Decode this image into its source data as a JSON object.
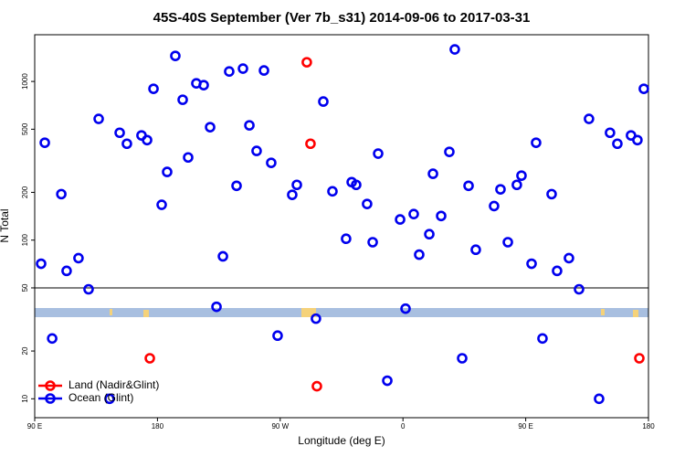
{
  "chart_data": {
    "type": "scatter",
    "title": "45S-40S September (Ver 7b_s31)   2014-09-06 to 2017-03-31",
    "x_label": "Longitude (deg E)",
    "y_label": "N Total",
    "log_y": true,
    "xlim": [
      90,
      540
    ],
    "xticks": [
      {
        "value": 90,
        "label": "90 E"
      },
      180,
      {
        "value": 270,
        "label": "90 W"
      },
      {
        "value": 360,
        "label": "0"
      },
      {
        "value": 450,
        "label": "90 E"
      },
      {
        "value": 540,
        "label": "180"
      }
    ],
    "ylim": [
      7.6,
      1970
    ],
    "yticks": [
      10,
      20,
      50,
      100,
      200,
      500,
      1000
    ],
    "reference_line": 50,
    "legend": "lower left",
    "series": [
      {
        "name": "Land (Nadir&Glint)",
        "color": "#ff0000",
        "x": [
          174.4,
          289.5,
          292.2,
          296.9,
          533.3
        ],
        "values": [
          18,
          1321,
          405,
          12,
          18
        ]
      },
      {
        "name": "Ocean (Glint)",
        "color": "#0000ee",
        "x": [
          94.7,
          97.4,
          102.8,
          109.5,
          113.4,
          122.1,
          129.5,
          136.9,
          144.9,
          152.3,
          157.6,
          168.3,
          172.4,
          177.1,
          183.1,
          187.1,
          193.1,
          198.5,
          202.5,
          208.5,
          213.9,
          218.6,
          223.3,
          228.0,
          232.6,
          238.0,
          242.7,
          247.4,
          252.7,
          258.1,
          263.4,
          268.1,
          278.8,
          282.2,
          296.2,
          301.6,
          308.3,
          318.3,
          322.4,
          325.7,
          333.7,
          337.8,
          341.8,
          348.5,
          357.9,
          361.9,
          367.9,
          371.9,
          379.3,
          382.0,
          388.0,
          394.0,
          398.0,
          403.4,
          408.1,
          413.4,
          426.8,
          431.5,
          436.9,
          443.5,
          446.9,
          454.3,
          457.6,
          462.3,
          469.0,
          473.0,
          481.7,
          489.1,
          496.4,
          503.8,
          511.8,
          517.2,
          527.2,
          531.9,
          536.6
        ],
        "values": [
          71,
          411,
          24,
          195,
          64,
          77,
          49,
          581,
          10,
          475,
          405,
          457,
          427,
          899,
          167,
          269,
          1449,
          767,
          332,
          973,
          948,
          515,
          38,
          79,
          1156,
          220,
          1205,
          529,
          365,
          1173,
          307,
          25,
          193,
          223,
          32,
          747,
          203,
          102,
          232,
          223,
          169,
          97,
          351,
          13,
          135,
          37,
          146,
          81,
          109,
          262,
          142,
          360,
          1592,
          18,
          220,
          87,
          164,
          209,
          97,
          223,
          255,
          71,
          411,
          24,
          195,
          64,
          77,
          49,
          581,
          10,
          475,
          405,
          457,
          427,
          899
        ]
      }
    ]
  }
}
